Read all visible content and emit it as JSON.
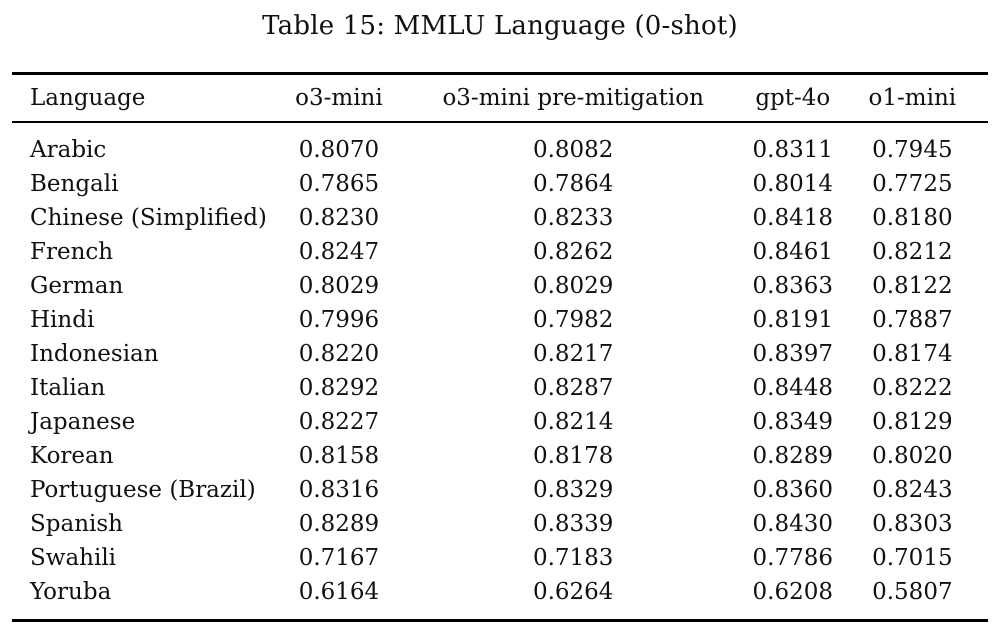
{
  "title": "Table 15: MMLU Language (0-shot)",
  "colors": {
    "background": "#ffffff",
    "text": "#111111",
    "rule": "#000000"
  },
  "table": {
    "columns": [
      "Language",
      "o3-mini",
      "o3-mini pre-mitigation",
      "gpt-4o",
      "o1-mini"
    ],
    "rows": [
      {
        "language": "Arabic",
        "scores": [
          "0.8070",
          "0.8082",
          "0.8311",
          "0.7945"
        ]
      },
      {
        "language": "Bengali",
        "scores": [
          "0.7865",
          "0.7864",
          "0.8014",
          "0.7725"
        ]
      },
      {
        "language": "Chinese (Simplified)",
        "scores": [
          "0.8230",
          "0.8233",
          "0.8418",
          "0.8180"
        ]
      },
      {
        "language": "French",
        "scores": [
          "0.8247",
          "0.8262",
          "0.8461",
          "0.8212"
        ]
      },
      {
        "language": "German",
        "scores": [
          "0.8029",
          "0.8029",
          "0.8363",
          "0.8122"
        ]
      },
      {
        "language": "Hindi",
        "scores": [
          "0.7996",
          "0.7982",
          "0.8191",
          "0.7887"
        ]
      },
      {
        "language": "Indonesian",
        "scores": [
          "0.8220",
          "0.8217",
          "0.8397",
          "0.8174"
        ]
      },
      {
        "language": "Italian",
        "scores": [
          "0.8292",
          "0.8287",
          "0.8448",
          "0.8222"
        ]
      },
      {
        "language": "Japanese",
        "scores": [
          "0.8227",
          "0.8214",
          "0.8349",
          "0.8129"
        ]
      },
      {
        "language": "Korean",
        "scores": [
          "0.8158",
          "0.8178",
          "0.8289",
          "0.8020"
        ]
      },
      {
        "language": "Portuguese (Brazil)",
        "scores": [
          "0.8316",
          "0.8329",
          "0.8360",
          "0.8243"
        ]
      },
      {
        "language": "Spanish",
        "scores": [
          "0.8289",
          "0.8339",
          "0.8430",
          "0.8303"
        ]
      },
      {
        "language": "Swahili",
        "scores": [
          "0.7167",
          "0.7183",
          "0.7786",
          "0.7015"
        ]
      },
      {
        "language": "Yoruba",
        "scores": [
          "0.6164",
          "0.6264",
          "0.6208",
          "0.5807"
        ]
      }
    ]
  },
  "chart_data": {
    "type": "table",
    "title": "Table 15: MMLU Language (0-shot)",
    "categories": [
      "Arabic",
      "Bengali",
      "Chinese (Simplified)",
      "French",
      "German",
      "Hindi",
      "Indonesian",
      "Italian",
      "Japanese",
      "Korean",
      "Portuguese (Brazil)",
      "Spanish",
      "Swahili",
      "Yoruba"
    ],
    "series": [
      {
        "name": "o3-mini",
        "values": [
          0.807,
          0.7865,
          0.823,
          0.8247,
          0.8029,
          0.7996,
          0.822,
          0.8292,
          0.8227,
          0.8158,
          0.8316,
          0.8289,
          0.7167,
          0.6164
        ]
      },
      {
        "name": "o3-mini pre-mitigation",
        "values": [
          0.8082,
          0.7864,
          0.8233,
          0.8262,
          0.8029,
          0.7982,
          0.8217,
          0.8287,
          0.8214,
          0.8178,
          0.8329,
          0.8339,
          0.7183,
          0.6264
        ]
      },
      {
        "name": "gpt-4o",
        "values": [
          0.8311,
          0.8014,
          0.8418,
          0.8461,
          0.8363,
          0.8191,
          0.8397,
          0.8448,
          0.8349,
          0.8289,
          0.836,
          0.843,
          0.7786,
          0.6208
        ]
      },
      {
        "name": "o1-mini",
        "values": [
          0.7945,
          0.7725,
          0.818,
          0.8212,
          0.8122,
          0.7887,
          0.8174,
          0.8222,
          0.8129,
          0.802,
          0.8243,
          0.8303,
          0.7015,
          0.5807
        ]
      }
    ]
  }
}
